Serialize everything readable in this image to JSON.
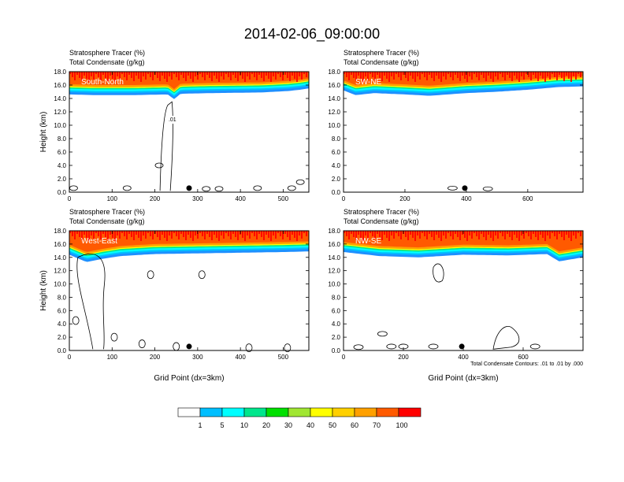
{
  "title": "2014-02-06_09:00:00",
  "colors": {
    "bins": [
      "#ffffff",
      "#1e90ff",
      "#00bfff",
      "#00ffff",
      "#00e68c",
      "#00e000",
      "#a0e632",
      "#ffff00",
      "#ffd000",
      "#ffa000",
      "#ff5a00",
      "#ff0000"
    ],
    "contour": "#000000"
  },
  "chart_data": [
    {
      "type": "heatmap",
      "panel_label": "South-North",
      "title_lines": [
        "Stratosphere Tracer   (%)",
        "Total Condensate   (g/kg)"
      ],
      "ylabel": "Height (km)",
      "xlabel": "",
      "xlim": [
        0,
        560
      ],
      "xticks": [
        0,
        100,
        200,
        300,
        400,
        500
      ],
      "ylim": [
        0,
        18
      ],
      "yticks": [
        "0.0",
        "2.0",
        "4.0",
        "6.0",
        "8.0",
        "10.0",
        "12.0",
        "14.0",
        "16.0",
        "18.0"
      ],
      "marker_x": 280,
      "tracer_bottom_km": [
        [
          0,
          14.6
        ],
        [
          60,
          14.5
        ],
        [
          150,
          14.5
        ],
        [
          230,
          14.6
        ],
        [
          245,
          13.9
        ],
        [
          260,
          14.7
        ],
        [
          330,
          14.8
        ],
        [
          450,
          14.9
        ],
        [
          510,
          15.1
        ],
        [
          540,
          15.3
        ],
        [
          560,
          15.5
        ]
      ],
      "contour_label": ".01",
      "annotation": ""
    },
    {
      "type": "heatmap",
      "panel_label": "SW-NE",
      "title_lines": [
        "Stratosphere Tracer   (%)",
        "Total Condensate   (g/kg)"
      ],
      "ylabel": "",
      "xlabel": "",
      "xlim": [
        0,
        780
      ],
      "xticks": [
        0,
        200,
        400,
        600
      ],
      "ylim": [
        0,
        18
      ],
      "yticks": [
        "0.0",
        "2.0",
        "4.0",
        "6.0",
        "8.0",
        "10.0",
        "12.0",
        "14.0",
        "16.0",
        "18.0"
      ],
      "marker_x": 395,
      "tracer_bottom_km": [
        [
          0,
          15.2
        ],
        [
          40,
          14.5
        ],
        [
          100,
          14.8
        ],
        [
          200,
          14.6
        ],
        [
          280,
          14.4
        ],
        [
          400,
          14.8
        ],
        [
          500,
          15.0
        ],
        [
          600,
          15.3
        ],
        [
          700,
          15.7
        ],
        [
          780,
          15.8
        ]
      ],
      "contour_label": "",
      "annotation": ""
    },
    {
      "type": "heatmap",
      "panel_label": "West-East",
      "title_lines": [
        "Stratosphere Tracer   (%)",
        "Total Condensate   (g/kg)"
      ],
      "ylabel": "Height (km)",
      "xlabel": "Grid Point (dx=3km)",
      "xlim": [
        0,
        560
      ],
      "xticks": [
        0,
        100,
        200,
        300,
        400,
        500
      ],
      "ylim": [
        0,
        18
      ],
      "yticks": [
        "0.0",
        "2.0",
        "4.0",
        "6.0",
        "8.0",
        "10.0",
        "12.0",
        "14.0",
        "16.0",
        "18.0"
      ],
      "marker_x": 280,
      "tracer_bottom_km": [
        [
          0,
          14.4
        ],
        [
          40,
          13.3
        ],
        [
          80,
          13.8
        ],
        [
          120,
          14.2
        ],
        [
          200,
          14.5
        ],
        [
          300,
          14.6
        ],
        [
          400,
          14.7
        ],
        [
          500,
          14.8
        ],
        [
          560,
          14.9
        ]
      ],
      "contour_label": "",
      "annotation": ""
    },
    {
      "type": "heatmap",
      "panel_label": "NW-SE",
      "title_lines": [
        "Stratosphere Tracer   (%)",
        "Total Condensate   (g/kg)"
      ],
      "ylabel": "",
      "xlabel": "Grid Point (dx=3km)",
      "xlim": [
        0,
        800
      ],
      "xticks": [
        0,
        200,
        400,
        600
      ],
      "ylim": [
        0,
        18
      ],
      "yticks": [
        "0.0",
        "2.0",
        "4.0",
        "6.0",
        "8.0",
        "10.0",
        "12.0",
        "14.0",
        "16.0",
        "18.0"
      ],
      "marker_x": 395,
      "tracer_bottom_km": [
        [
          0,
          14.8
        ],
        [
          120,
          14.2
        ],
        [
          250,
          14.0
        ],
        [
          400,
          14.4
        ],
        [
          550,
          14.3
        ],
        [
          680,
          14.5
        ],
        [
          720,
          13.4
        ],
        [
          800,
          14.0
        ]
      ],
      "contour_label": "",
      "annotation": "Total Condensate Contours: .01 to .01 by .000"
    }
  ],
  "colorbar": {
    "labels": [
      "1",
      "5",
      "10",
      "20",
      "30",
      "40",
      "50",
      "60",
      "70",
      "100"
    ]
  }
}
